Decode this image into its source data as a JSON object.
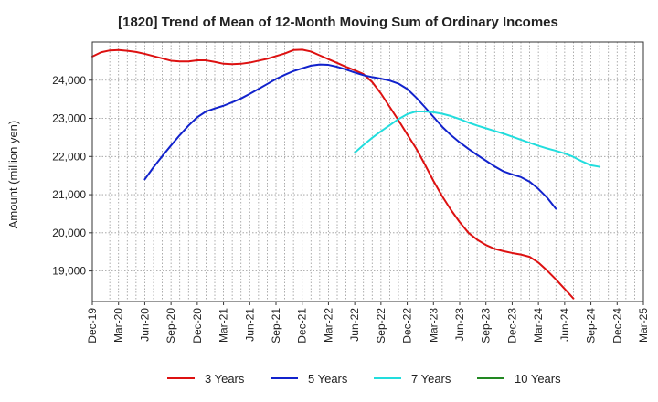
{
  "chart_data": {
    "type": "line",
    "title": "[1820]  Trend of Mean of 12-Month Moving Sum of Ordinary Incomes",
    "xlabel": "",
    "ylabel": "Amount (million yen)",
    "ylim": [
      18200,
      25000
    ],
    "yticks": [
      19000,
      20000,
      21000,
      22000,
      23000,
      24000
    ],
    "ytick_labels": [
      "19,000",
      "20,000",
      "21,000",
      "22,000",
      "23,000",
      "24,000"
    ],
    "x_ticks": [
      "Dec-19",
      "Mar-20",
      "Jun-20",
      "Sep-20",
      "Dec-20",
      "Mar-21",
      "Jun-21",
      "Sep-21",
      "Dec-21",
      "Mar-22",
      "Jun-22",
      "Sep-22",
      "Dec-22",
      "Mar-23",
      "Jun-23",
      "Sep-23",
      "Dec-23",
      "Mar-24",
      "Jun-24",
      "Sep-24",
      "Dec-24",
      "Mar-25"
    ],
    "grid": true,
    "legend_position": "bottom",
    "series": [
      {
        "name": "3 Years",
        "color": "#dd1111",
        "start_index": 0,
        "values": [
          24620,
          24730,
          24780,
          24790,
          24770,
          24740,
          24690,
          24630,
          24570,
          24510,
          24490,
          24490,
          24520,
          24520,
          24480,
          24430,
          24420,
          24430,
          24460,
          24510,
          24560,
          24630,
          24700,
          24790,
          24800,
          24750,
          24650,
          24550,
          24450,
          24350,
          24260,
          24160,
          23950,
          23650,
          23300,
          22950,
          22580,
          22220,
          21800,
          21360,
          20960,
          20600,
          20280,
          20000,
          19820,
          19680,
          19580,
          19520,
          19470,
          19430,
          19370,
          19220,
          19010,
          18780,
          18530,
          18280
        ]
      },
      {
        "name": "5 Years",
        "color": "#1122cc",
        "start_index": 6,
        "values": [
          21400,
          21720,
          22010,
          22290,
          22560,
          22810,
          23030,
          23180,
          23260,
          23330,
          23420,
          23520,
          23640,
          23770,
          23900,
          24030,
          24140,
          24240,
          24310,
          24380,
          24410,
          24400,
          24350,
          24280,
          24200,
          24130,
          24080,
          24040,
          23990,
          23910,
          23770,
          23550,
          23300,
          23040,
          22780,
          22560,
          22370,
          22200,
          22040,
          21890,
          21740,
          21610,
          21530,
          21460,
          21340,
          21150,
          20920,
          20630
        ]
      },
      {
        "name": "7 Years",
        "color": "#22dddd",
        "start_index": 30,
        "values": [
          22100,
          22300,
          22490,
          22660,
          22820,
          22980,
          23110,
          23180,
          23180,
          23160,
          23120,
          23060,
          22980,
          22890,
          22810,
          22740,
          22670,
          22600,
          22520,
          22440,
          22360,
          22280,
          22210,
          22150,
          22080,
          21990,
          21870,
          21770,
          21730
        ]
      },
      {
        "name": "10 Years",
        "color": "#228822",
        "start_index": 0,
        "values": []
      }
    ]
  }
}
